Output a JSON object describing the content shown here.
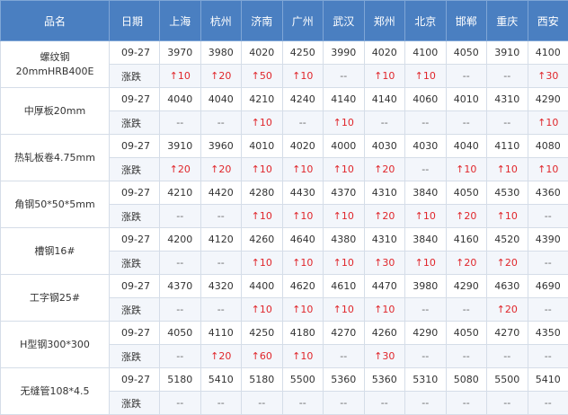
{
  "table": {
    "headers": {
      "name": "品名",
      "date": "日期",
      "cities": [
        "上海",
        "杭州",
        "济南",
        "广州",
        "武汉",
        "郑州",
        "北京",
        "邯郸",
        "重庆",
        "西安"
      ]
    },
    "change_label": "涨跌",
    "rows": [
      {
        "name_line1": "螺纹钢",
        "name_line2": "20mmHRB400E",
        "date": "09-27",
        "prices": [
          "3970",
          "3980",
          "4020",
          "4250",
          "3990",
          "4020",
          "4100",
          "4050",
          "3910",
          "4100"
        ],
        "changes": [
          "↑10",
          "↑20",
          "↑50",
          "↑10",
          "--",
          "↑10",
          "↑10",
          "--",
          "--",
          "↑30"
        ]
      },
      {
        "name_line1": "中厚板20mm",
        "name_line2": "",
        "date": "09-27",
        "prices": [
          "4040",
          "4040",
          "4210",
          "4240",
          "4140",
          "4140",
          "4060",
          "4010",
          "4310",
          "4290"
        ],
        "changes": [
          "--",
          "--",
          "↑10",
          "--",
          "↑10",
          "--",
          "--",
          "--",
          "--",
          "↑10"
        ]
      },
      {
        "name_line1": "热轧板卷4.75mm",
        "name_line2": "",
        "date": "09-27",
        "prices": [
          "3910",
          "3960",
          "4010",
          "4020",
          "4000",
          "4030",
          "4030",
          "4040",
          "4110",
          "4080"
        ],
        "changes": [
          "↑20",
          "↑20",
          "↑10",
          "↑10",
          "↑10",
          "↑20",
          "--",
          "↑10",
          "↑10",
          "↑10"
        ]
      },
      {
        "name_line1": "角钢50*50*5mm",
        "name_line2": "",
        "date": "09-27",
        "prices": [
          "4210",
          "4420",
          "4280",
          "4430",
          "4370",
          "4310",
          "3840",
          "4050",
          "4530",
          "4360"
        ],
        "changes": [
          "--",
          "--",
          "↑10",
          "↑10",
          "↑10",
          "↑20",
          "↑10",
          "↑20",
          "↑10",
          "--"
        ]
      },
      {
        "name_line1": "槽钢16#",
        "name_line2": "",
        "date": "09-27",
        "prices": [
          "4200",
          "4120",
          "4260",
          "4640",
          "4380",
          "4310",
          "3840",
          "4160",
          "4520",
          "4390"
        ],
        "changes": [
          "--",
          "--",
          "↑10",
          "↑10",
          "↑10",
          "↑30",
          "↑10",
          "↑20",
          "↑20",
          "--"
        ]
      },
      {
        "name_line1": "工字钢25#",
        "name_line2": "",
        "date": "09-27",
        "prices": [
          "4370",
          "4320",
          "4400",
          "4620",
          "4610",
          "4470",
          "3980",
          "4290",
          "4630",
          "4690"
        ],
        "changes": [
          "--",
          "--",
          "↑10",
          "↑10",
          "↑10",
          "↑10",
          "--",
          "--",
          "↑20",
          "--"
        ]
      },
      {
        "name_line1": "H型钢300*300",
        "name_line2": "",
        "date": "09-27",
        "prices": [
          "4050",
          "4110",
          "4250",
          "4180",
          "4270",
          "4260",
          "4290",
          "4050",
          "4270",
          "4350"
        ],
        "changes": [
          "--",
          "↑20",
          "↑60",
          "↑10",
          "--",
          "↑30",
          "--",
          "--",
          "--",
          "--"
        ]
      },
      {
        "name_line1": "无缝管108*4.5",
        "name_line2": "",
        "date": "09-27",
        "prices": [
          "5180",
          "5410",
          "5180",
          "5500",
          "5360",
          "5360",
          "5310",
          "5080",
          "5500",
          "5410"
        ],
        "changes": [
          "--",
          "--",
          "--",
          "--",
          "--",
          "--",
          "--",
          "--",
          "--",
          "--"
        ]
      }
    ]
  }
}
